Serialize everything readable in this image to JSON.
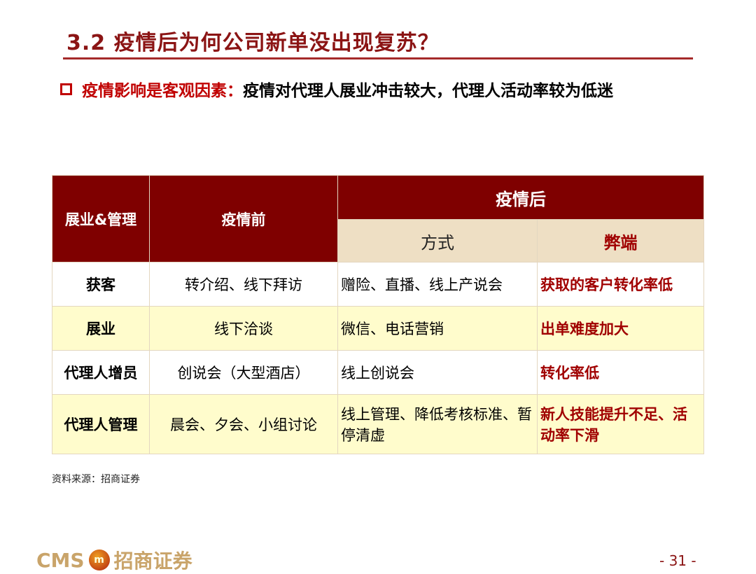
{
  "title": "3.2 疫情后为何公司新单没出现复苏？",
  "subtitle": {
    "highlight": "疫情影响是客观因素：",
    "text": "疫情对代理人展业冲击较大，代理人活动率较为低迷"
  },
  "table": {
    "headers": {
      "col1": "展业&管理",
      "col2": "疫情前",
      "col3": "疫情后",
      "sub1": "方式",
      "sub2": "弊端"
    },
    "rows": [
      [
        "获客",
        "转介绍、线下拜访",
        "赠险、直播、线上产说会",
        "获取的客户转化率低"
      ],
      [
        "展业",
        "线下洽谈",
        "微信、电话营销",
        "出单难度加大"
      ],
      [
        "代理人增员",
        "创说会（大型酒店）",
        "线上创说会",
        "转化率低"
      ],
      [
        "代理人管理",
        "晨会、夕会、小组讨论",
        "线上管理、降低考核标准、暂停清虚",
        "新人技能提升不足、活动率下滑"
      ]
    ]
  },
  "source": "资料来源：招商证券",
  "footer": {
    "logo": "CMS 招商证券",
    "page": "- 31 -"
  }
}
